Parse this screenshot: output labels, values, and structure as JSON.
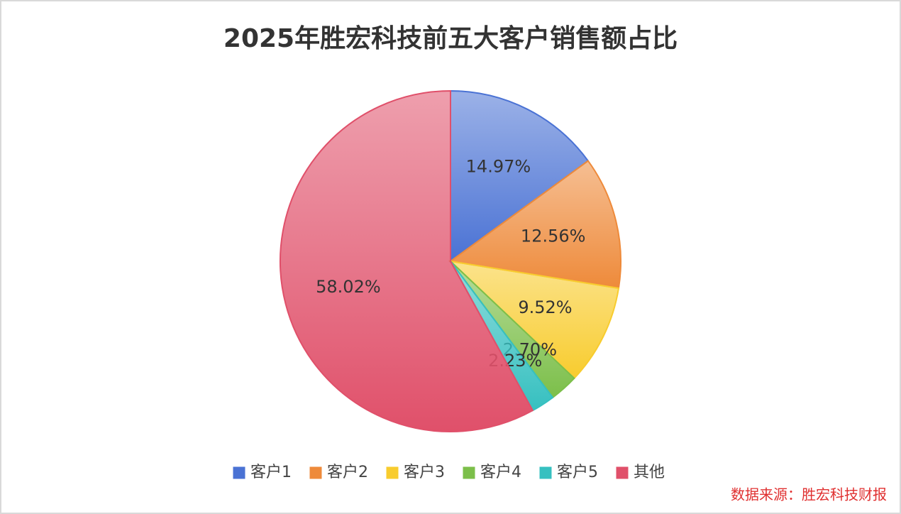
{
  "chart_data": {
    "type": "pie",
    "title": "2025年胜宏科技前五大客户销售额占比",
    "categories": [
      "客户1",
      "客户2",
      "客户3",
      "客户4",
      "客户5",
      "其他"
    ],
    "values": [
      14.97,
      12.56,
      9.52,
      2.7,
      2.23,
      58.02
    ],
    "value_labels": [
      "14.97%",
      "12.56%",
      "9.52%",
      "2.70%",
      "2.23%",
      "58.02%"
    ],
    "colors": [
      "#4a72d4",
      "#ee8a3a",
      "#f8cc2e",
      "#7cbf4a",
      "#36c0c0",
      "#e0506a"
    ],
    "legend": "bottom",
    "source": "数据来源：胜宏科技财报"
  }
}
